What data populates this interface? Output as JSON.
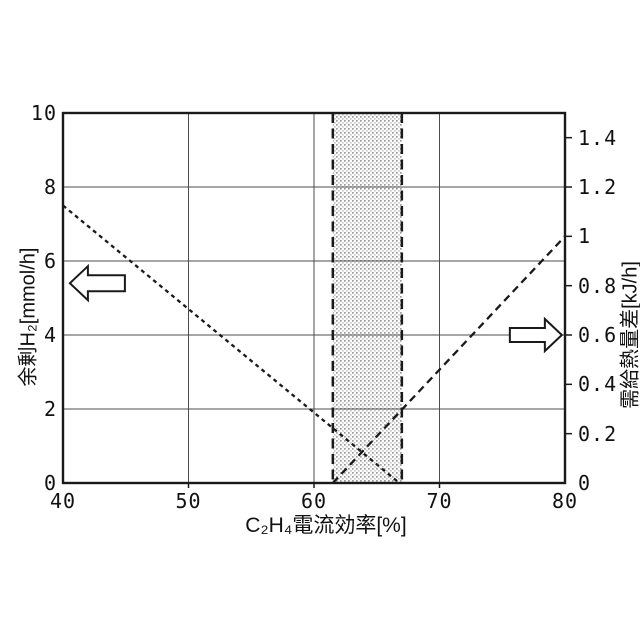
{
  "figure": {
    "background": "#ffffff",
    "line_color": "#1a1a1a",
    "grid_color": "#4d4d4d",
    "band_dot_color_dark": "#9b9b9b",
    "band_dot_color_light": "#c9c9c9"
  },
  "chart_data": {
    "type": "line",
    "title": "",
    "xlabel": "C₂H₄電流効率[%]",
    "ylabel_left": "余剰H₂[mmol/h]",
    "ylabel_right": "需給熱量差[kJ/h]",
    "xlim": [
      40,
      80
    ],
    "ylim_left": [
      0,
      10
    ],
    "ylim_right": [
      0,
      1.5
    ],
    "x_ticks": [
      40,
      50,
      60,
      70,
      80
    ],
    "x_gridlines": [
      50,
      60,
      70
    ],
    "y_ticks_left": [
      10,
      8,
      6,
      4,
      2,
      0
    ],
    "y_gridlines_left": [
      2,
      4,
      6,
      8
    ],
    "y_ticks_right": [
      0,
      0.2,
      0.4,
      0.6,
      0.8,
      1,
      1.2,
      1.4
    ],
    "grid": true,
    "legend": "none",
    "series": [
      {
        "name": "surplus-hydrogen",
        "axis": "left",
        "style": "dotted",
        "points": [
          [
            40,
            7.5
          ],
          [
            66.8,
            0
          ]
        ]
      },
      {
        "name": "heat-supply-demand-difference",
        "axis": "right",
        "style": "dashed",
        "points": [
          [
            61.5,
            0
          ],
          [
            80,
            1.0
          ]
        ]
      }
    ],
    "highlight_band": {
      "x_from": 61.5,
      "x_to": 67,
      "border": "dashed",
      "fill": "dot-pattern"
    },
    "annotations": [
      {
        "name": "left-axis-arrow",
        "shape": "hollow-arrow",
        "direction": "left",
        "tip_x": 40.55,
        "axis": "left",
        "tip_y": 5.4
      },
      {
        "name": "right-axis-arrow",
        "shape": "hollow-arrow",
        "direction": "right",
        "tip_x": 79.75,
        "axis": "right",
        "tip_y": 0.6
      }
    ]
  }
}
